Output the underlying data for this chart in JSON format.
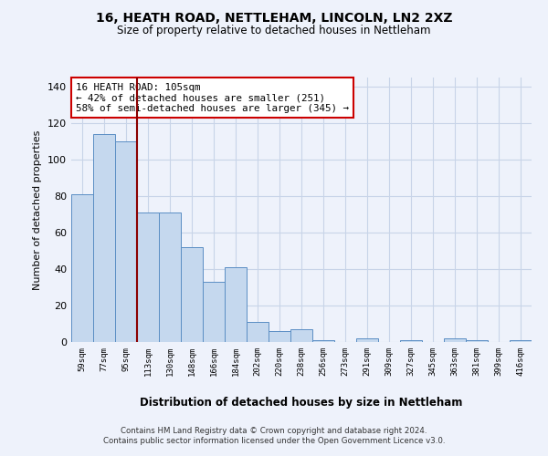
{
  "title": "16, HEATH ROAD, NETTLEHAM, LINCOLN, LN2 2XZ",
  "subtitle": "Size of property relative to detached houses in Nettleham",
  "xlabel": "Distribution of detached houses by size in Nettleham",
  "ylabel": "Number of detached properties",
  "categories": [
    "59sqm",
    "77sqm",
    "95sqm",
    "113sqm",
    "130sqm",
    "148sqm",
    "166sqm",
    "184sqm",
    "202sqm",
    "220sqm",
    "238sqm",
    "256sqm",
    "273sqm",
    "291sqm",
    "309sqm",
    "327sqm",
    "345sqm",
    "363sqm",
    "381sqm",
    "399sqm",
    "416sqm"
  ],
  "values": [
    81,
    114,
    110,
    71,
    71,
    52,
    33,
    41,
    11,
    6,
    7,
    1,
    0,
    2,
    0,
    1,
    0,
    2,
    1,
    0,
    1
  ],
  "bar_color": "#c5d8ee",
  "bar_edge_color": "#5b8ec4",
  "marker_color": "#8B0000",
  "ylim": [
    0,
    145
  ],
  "yticks": [
    0,
    20,
    40,
    60,
    80,
    100,
    120,
    140
  ],
  "annotation_text": "16 HEATH ROAD: 105sqm\n← 42% of detached houses are smaller (251)\n58% of semi-detached houses are larger (345) →",
  "annotation_box_edge": "#cc0000",
  "footer1": "Contains HM Land Registry data © Crown copyright and database right 2024.",
  "footer2": "Contains public sector information licensed under the Open Government Licence v3.0.",
  "bg_color": "#eef2fb",
  "grid_color": "#c8d4e8"
}
